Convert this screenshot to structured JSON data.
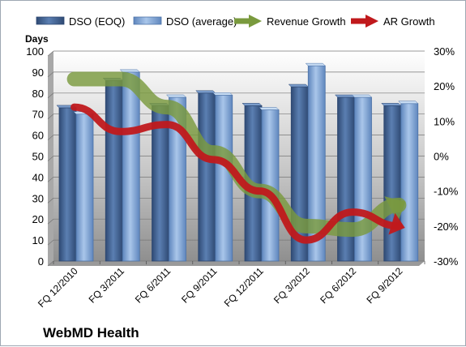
{
  "chart_data": {
    "type": "bar",
    "title": "",
    "company": "WebMD Health",
    "ylabel": "Days",
    "ylim": [
      0,
      100
    ],
    "yticks": [
      0,
      10,
      20,
      30,
      40,
      50,
      60,
      70,
      80,
      90,
      100
    ],
    "y2lim": [
      -30,
      30
    ],
    "y2ticks": [
      "-30%",
      "-20%",
      "-10%",
      "0%",
      "10%",
      "20%",
      "30%"
    ],
    "categories": [
      "FQ 12/2010",
      "FQ 3/2011",
      "FQ 6/2011",
      "FQ 9/2011",
      "FQ 12/2011",
      "FQ 3/2012",
      "FQ 6/2012",
      "FQ 9/2012"
    ],
    "bar_series": [
      {
        "name": "DSO (EOQ)",
        "color": "#4f6e9e",
        "values": [
          73,
          86,
          74,
          80,
          74,
          83,
          78,
          74
        ]
      },
      {
        "name": "DSO (average)",
        "color": "#8eb4e3",
        "values": [
          70,
          90,
          78,
          79,
          72,
          93,
          78,
          75
        ]
      }
    ],
    "line_series": [
      {
        "name": "Revenue Growth",
        "color": "#7a9a3e",
        "axis": "secondary",
        "values": [
          22,
          22,
          14,
          1,
          -10,
          -20,
          -21,
          -14
        ]
      },
      {
        "name": "AR Growth",
        "color": "#c0191c",
        "axis": "secondary",
        "values": [
          14,
          7,
          9,
          -1,
          -10,
          -24,
          -16,
          -20
        ]
      }
    ],
    "grid": true,
    "legend_position": "top"
  }
}
